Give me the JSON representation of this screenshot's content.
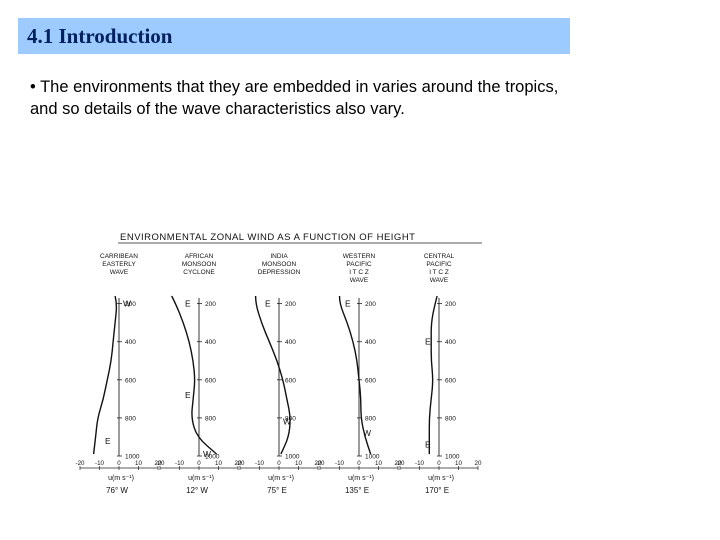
{
  "slide": {
    "title": "4.1 Introduction",
    "bullet_marker": "•",
    "bullet_text": "The environments that they are embedded in varies around the tropics, and so details of the wave characteristics also vary."
  },
  "figure": {
    "heading": "ENVIRONMENTAL ZONAL WIND AS A FUNCTION OF HEIGHT",
    "x_ticks": [
      "-20",
      "-10",
      "0",
      "10",
      "20"
    ],
    "x_label": "u(m s⁻¹)",
    "pressure_levels": [
      "200",
      "400",
      "600",
      "800",
      "1000"
    ],
    "panels": [
      {
        "name_lines": [
          "CARRIBEAN",
          "EASTERLY",
          "WAVE"
        ],
        "location": "76° W",
        "markers": [
          {
            "t": "W",
            "p": 200
          },
          {
            "t": "E",
            "p": 920
          }
        ],
        "profile": [
          [
            -2,
            160
          ],
          [
            -1,
            200
          ],
          [
            -2,
            300
          ],
          [
            -3,
            400
          ],
          [
            -4,
            500
          ],
          [
            -6,
            600
          ],
          [
            -8,
            700
          ],
          [
            -11,
            800
          ],
          [
            -12,
            900
          ],
          [
            -13,
            990
          ]
        ]
      },
      {
        "name_lines": [
          "AFRICAN",
          "MONSOON",
          "CYCLONE"
        ],
        "location": "12° W",
        "markers": [
          {
            "t": "E",
            "p": 200
          },
          {
            "t": "E",
            "p": 680
          },
          {
            "t": "W",
            "p": 990
          }
        ],
        "profile": [
          [
            -14,
            160
          ],
          [
            -12,
            200
          ],
          [
            -8,
            300
          ],
          [
            -5,
            400
          ],
          [
            -3,
            500
          ],
          [
            -2,
            600
          ],
          [
            -3,
            700
          ],
          [
            -4,
            800
          ],
          [
            -1,
            900
          ],
          [
            9,
            990
          ]
        ]
      },
      {
        "name_lines": [
          "INDIA",
          "MONSOON",
          "DEPRESSION"
        ],
        "location": "75° E",
        "markers": [
          {
            "t": "E",
            "p": 200
          },
          {
            "t": "W",
            "p": 820
          }
        ],
        "profile": [
          [
            -12,
            160
          ],
          [
            -12,
            200
          ],
          [
            -9,
            300
          ],
          [
            -5,
            400
          ],
          [
            -1,
            500
          ],
          [
            2,
            600
          ],
          [
            4,
            700
          ],
          [
            6,
            800
          ],
          [
            5,
            900
          ],
          [
            1,
            990
          ]
        ]
      },
      {
        "name_lines": [
          "WESTERN",
          "PACIFIC",
          "I T C Z",
          "WAVE"
        ],
        "location": "135° E",
        "markers": [
          {
            "t": "E",
            "p": 200
          },
          {
            "t": "W",
            "p": 880
          }
        ],
        "profile": [
          [
            -10,
            160
          ],
          [
            -10,
            200
          ],
          [
            -6,
            300
          ],
          [
            -3,
            400
          ],
          [
            -1,
            500
          ],
          [
            0,
            600
          ],
          [
            1,
            700
          ],
          [
            1,
            800
          ],
          [
            3,
            900
          ],
          [
            6,
            990
          ]
        ]
      },
      {
        "name_lines": [
          "CENTRAL",
          "PACIFIC",
          "I T C Z",
          "WAVE"
        ],
        "location": "170° E",
        "markers": [
          {
            "t": "E",
            "p": 400
          },
          {
            "t": "E",
            "p": 940
          }
        ],
        "profile": [
          [
            -1,
            160
          ],
          [
            -2,
            200
          ],
          [
            -4,
            300
          ],
          [
            -4,
            400
          ],
          [
            -4,
            500
          ],
          [
            -3,
            600
          ],
          [
            -4,
            700
          ],
          [
            -5,
            800
          ],
          [
            -5,
            900
          ],
          [
            -5,
            990
          ]
        ]
      }
    ]
  }
}
